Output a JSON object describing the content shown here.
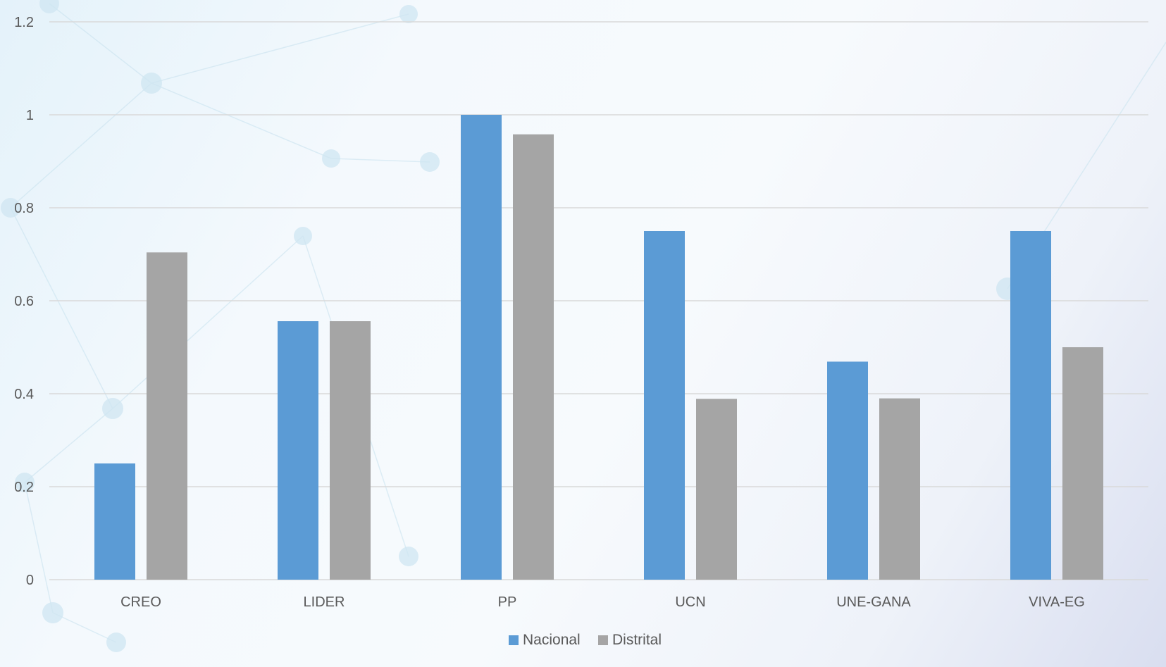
{
  "colors": {
    "nacional": "#5b9bd5",
    "distrital": "#a5a5a5",
    "grid": "#d9d9d9",
    "text": "#595959"
  },
  "chart_data": {
    "type": "bar",
    "title": "",
    "xlabel": "",
    "ylabel": "",
    "categories": [
      "CREO",
      "LIDER",
      "PP",
      "UCN",
      "UNE-GANA",
      "VIVA-EG"
    ],
    "series": [
      {
        "name": "Nacional",
        "values": [
          0.25,
          0.556,
          1.0,
          0.75,
          0.469,
          0.75
        ]
      },
      {
        "name": "Distrital",
        "values": [
          0.704,
          0.556,
          0.958,
          0.389,
          0.39,
          0.5
        ]
      }
    ],
    "ylim": [
      0,
      1.2
    ],
    "yticks": [
      "0",
      "0.2",
      "0.4",
      "0.6",
      "0.8",
      "1",
      "1.2"
    ],
    "grid": true,
    "legend_position": "bottom-center"
  }
}
